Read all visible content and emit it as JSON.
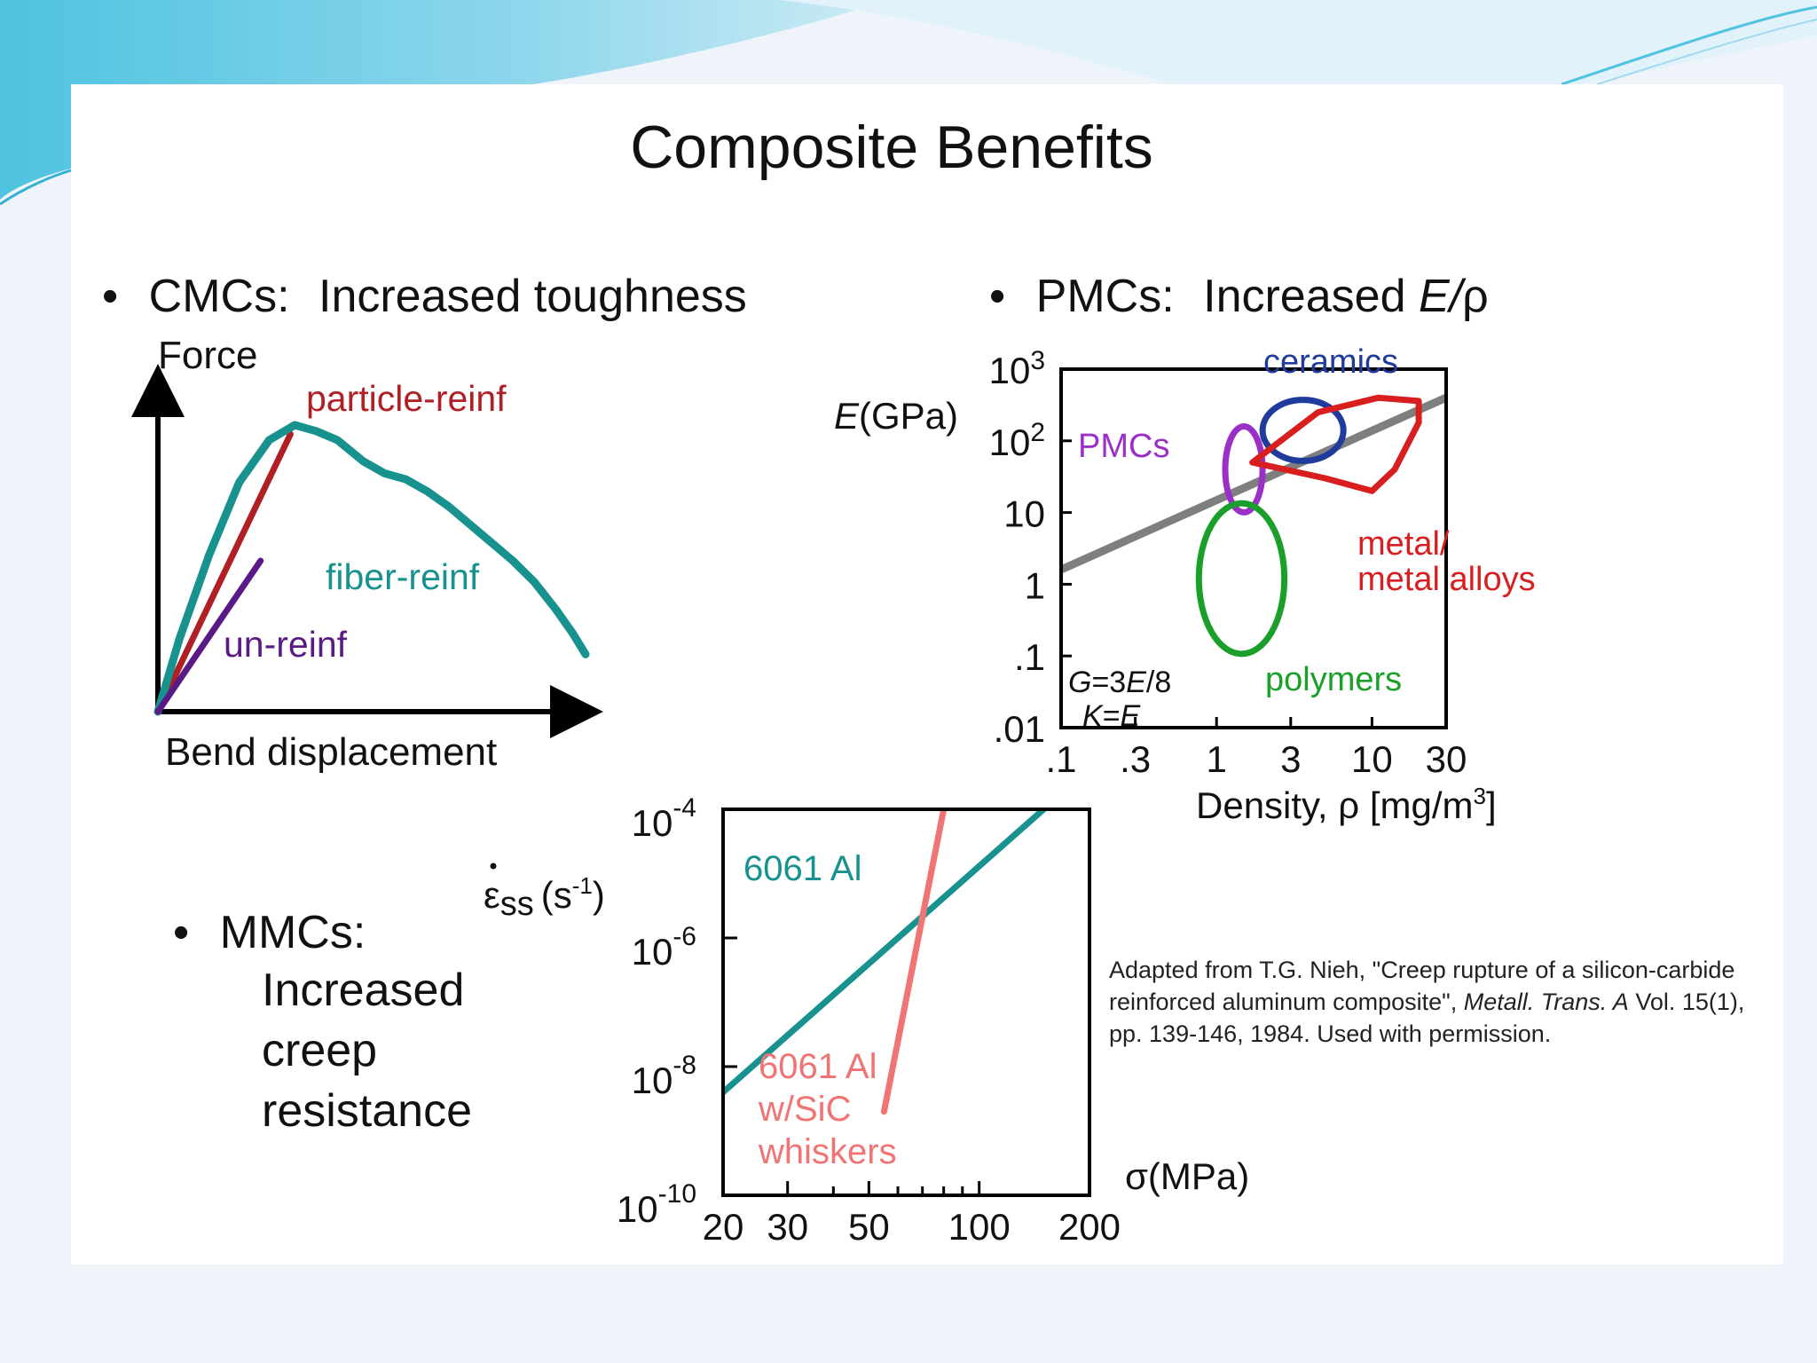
{
  "slide": {
    "title": "Composite Benefits",
    "bullet_symbol": "•",
    "cmc": {
      "label": "CMCs:",
      "text": "Increased toughness"
    },
    "pmc": {
      "label": "PMCs:",
      "text_prefix": "Increased ",
      "text_e": "E",
      "text_slash": "/",
      "text_rho": "ρ"
    },
    "mmc": {
      "label": "MMCs:",
      "lines": [
        "Increased",
        "creep",
        "resistance"
      ]
    },
    "citation": {
      "text1": "Adapted from T.G. Nieh, \"Creep rupture of a silicon-carbide reinforced aluminum composite\", ",
      "journal": "Metall. Trans. A",
      "text2": " Vol. 15(1), pp. 139-146, 1984.  Used with permission."
    },
    "colors": {
      "background": "#eef4fa",
      "panel": "#ffffff",
      "accent": "#5cc6e4"
    }
  },
  "chart_data": [
    {
      "type": "line",
      "ylabel": "Force",
      "xlabel": "Bend displacement",
      "xlim": [
        0,
        10
      ],
      "ylim": [
        0,
        10
      ],
      "series": [
        {
          "name": "particle-reinf",
          "color": "#b01f24",
          "x": [
            0,
            3.1
          ],
          "y": [
            0,
            9.2
          ]
        },
        {
          "name": "fiber-reinf",
          "color": "#17928f",
          "x": [
            0,
            0.5,
            1.2,
            1.9,
            2.6,
            3.2,
            3.7,
            4.2,
            4.8,
            5.3,
            5.8,
            6.3,
            6.8,
            7.3,
            7.8,
            8.3,
            8.8,
            9.3,
            9.7,
            10.0
          ],
          "y": [
            0,
            2.4,
            5.2,
            7.6,
            9.0,
            9.5,
            9.3,
            9.0,
            8.3,
            7.9,
            7.7,
            7.3,
            6.8,
            6.2,
            5.6,
            5.0,
            4.3,
            3.4,
            2.6,
            1.9
          ]
        },
        {
          "name": "un-reinf",
          "color": "#5a1a86",
          "x": [
            0,
            2.4
          ],
          "y": [
            0,
            5.0
          ]
        }
      ]
    },
    {
      "type": "scatter",
      "ylabel_italic": "E",
      "ylabel": "(GPa)",
      "xlabel": "Density, ρ [mg/m",
      "xlabel_sup": "3",
      "xlabel_end": "]",
      "x_scale": "log",
      "y_scale": "log",
      "xlim": [
        0.1,
        30
      ],
      "ylim": [
        0.01,
        1000
      ],
      "x_ticks": [
        ".1",
        ".3",
        "1",
        "3",
        "10",
        "30"
      ],
      "x_tick_values": [
        0.1,
        0.3,
        1,
        3,
        10,
        30
      ],
      "y_ticks": [
        ".01",
        ".1",
        "1",
        "10",
        "10",
        "10"
      ],
      "y_tick_values": [
        0.01,
        0.1,
        1,
        10,
        100,
        1000
      ],
      "y_tick_sups": [
        "",
        "",
        "",
        "",
        "2",
        "3"
      ],
      "annotation": {
        "g": "G",
        "g_eq": "=3",
        "g_e": "E",
        "g_end": "/8",
        "k": "K",
        "k_eq": "=",
        "k_e": "E"
      },
      "guide_line": {
        "color": "#7f7f7f",
        "x": [
          0.1,
          30
        ],
        "y": [
          1.6,
          400
        ]
      },
      "regions": [
        {
          "name": "ceramics",
          "color": "#1f3b9c",
          "center": [
            3.6,
            140
          ],
          "width_decades": 0.52,
          "height_decades": 0.85
        },
        {
          "name": "PMCs",
          "color": "#9b30c7",
          "center": [
            1.5,
            40
          ],
          "width_decades": 0.24,
          "height_decades": 1.2
        },
        {
          "name": "polymers",
          "color": "#1aa02a",
          "center": [
            1.45,
            1.2
          ],
          "width_decades": 0.55,
          "height_decades": 2.1
        },
        {
          "name": "metal/ metal alloys",
          "label_lines": [
            "metal/",
            "metal alloys"
          ],
          "color": "#d81e1e",
          "x": [
            1.7,
            4.5,
            11,
            20,
            20,
            14,
            10,
            5,
            1.7
          ],
          "y": [
            50,
            250,
            400,
            360,
            180,
            40,
            20,
            30,
            50
          ]
        }
      ]
    },
    {
      "type": "line",
      "ylabel": "ε",
      "ylabel_sub": "ss",
      "ylabel_units": "(s",
      "ylabel_units_sup": "-1",
      "ylabel_units_end": ")",
      "xlabel": "σ(MPa)",
      "x_scale": "log",
      "y_scale": "log",
      "xlim": [
        20,
        200
      ],
      "ylim": [
        1e-10,
        0.0001
      ],
      "x_ticks": [
        "20",
        "30",
        "50",
        "100",
        "200"
      ],
      "x_tick_values": [
        20,
        30,
        50,
        100,
        200
      ],
      "y_ticks_base": "10",
      "y_ticks_sups": [
        "-4",
        "-6",
        "-8",
        "-10"
      ],
      "y_tick_values": [
        0.0001,
        1e-06,
        1e-08,
        1e-10
      ],
      "series": [
        {
          "name": "6061 Al",
          "color": "#17928f",
          "x": [
            20,
            150
          ],
          "y": [
            4e-09,
            0.0001
          ]
        },
        {
          "name": "6061 Al w/SiC whiskers",
          "label_lines": [
            "6061 Al",
            "w/SiC",
            "whiskers"
          ],
          "color": "#f07474",
          "x": [
            55,
            80
          ],
          "y": [
            2e-09,
            0.0001
          ]
        }
      ]
    }
  ]
}
